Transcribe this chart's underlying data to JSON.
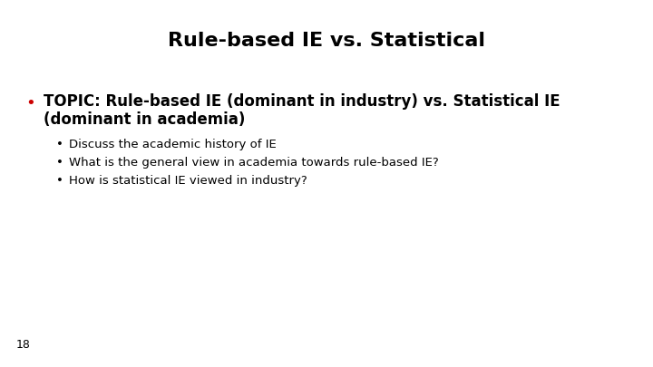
{
  "title": "Rule-based IE vs. Statistical",
  "background_color": "#ffffff",
  "title_color": "#000000",
  "title_fontsize": 16,
  "bullet1_line1": "TOPIC: Rule-based IE (dominant in industry) vs. Statistical IE",
  "bullet1_line2": "(dominant in academia)",
  "bullet1_color": "#000000",
  "bullet1_dot_color": "#cc0000",
  "bullet1_fontsize": 12,
  "sub_bullets": [
    "Discuss the academic history of IE",
    "What is the general view in academia towards rule-based IE?",
    "How is statistical IE viewed in industry?"
  ],
  "sub_bullet_color": "#000000",
  "sub_bullet_dot_color": "#000000",
  "sub_bullet_fontsize": 9.5,
  "page_number": "18",
  "page_number_fontsize": 9,
  "font_family": "DejaVu Sans"
}
